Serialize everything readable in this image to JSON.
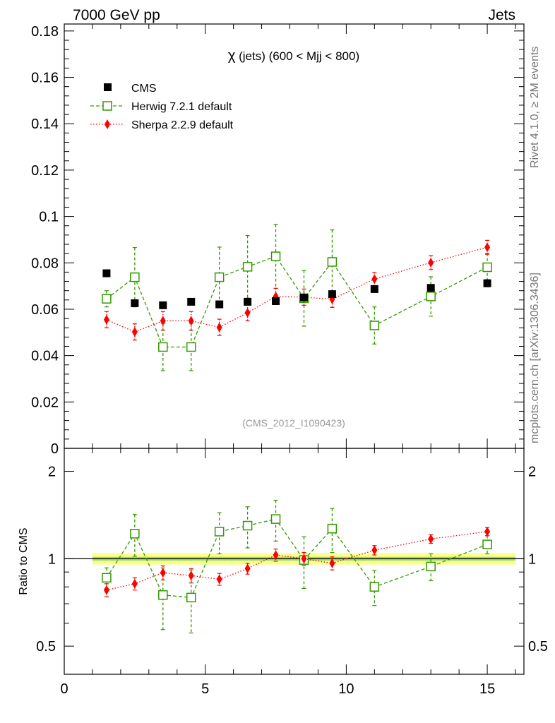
{
  "header": {
    "left": "7000 GeV pp",
    "right": "Jets"
  },
  "side_labels": {
    "rivet": "Rivet 4.1.0, ≥ 2M events",
    "mcplots": "mcplots.cern.ch [arXiv:1306.3436]"
  },
  "plot_title": {
    "symbol": "χ",
    "text": " (jets) (600 < Mjj <  800)"
  },
  "watermark": "(CMS_2012_I1090423)",
  "ratio_ylabel": "Ratio to CMS",
  "chart_data": {
    "type": "scatter",
    "x": [
      1.5,
      2.5,
      3.5,
      4.5,
      5.5,
      6.5,
      7.5,
      8.5,
      9.5,
      11,
      13,
      15
    ],
    "main": {
      "ylim": [
        0,
        0.183
      ],
      "yticks": [
        0,
        0.02,
        0.04,
        0.06,
        0.08,
        0.1,
        0.12,
        0.14,
        0.16,
        0.18
      ],
      "ytick_labels": [
        "0",
        "0.02",
        "0.04",
        "0.06",
        "0.08",
        "0.1",
        "0.12",
        "0.14",
        "0.16",
        "0.18"
      ]
    },
    "ratio": {
      "ylim": [
        0.4,
        2.4
      ],
      "log": true,
      "yticks": [
        0.5,
        1,
        2
      ],
      "ytick_labels": [
        "0.5",
        "1",
        "2"
      ],
      "band_inner": [
        0.985,
        1.015
      ],
      "band_outer": [
        0.955,
        1.045
      ]
    },
    "xlim": [
      0,
      16.3
    ],
    "xticks": [
      0,
      5,
      10,
      15
    ],
    "xtick_labels": [
      "0",
      "5",
      "10",
      "15"
    ],
    "series": [
      {
        "name": "CMS",
        "role": "data",
        "color": "#000000",
        "marker": "square-filled",
        "line": "none",
        "values": [
          0.0755,
          0.0626,
          0.0617,
          0.0632,
          0.0621,
          0.0632,
          0.0635,
          0.065,
          0.0665,
          0.0687,
          0.0692,
          0.0712
        ],
        "errors": [
          0.0015,
          0.0012,
          0.0012,
          0.0012,
          0.0012,
          0.0012,
          0.0012,
          0.0012,
          0.0012,
          0.0014,
          0.0014,
          0.0015
        ],
        "ratio": [
          1,
          1,
          1,
          1,
          1,
          1,
          1,
          1,
          1,
          1,
          1,
          1
        ]
      },
      {
        "name": "Herwig 7.2.1 default",
        "role": "mc",
        "color": "#339900",
        "marker": "square-open",
        "line": "dashed",
        "values": [
          0.0645,
          0.0738,
          0.0437,
          0.0437,
          0.0738,
          0.0783,
          0.0828,
          0.0647,
          0.0804,
          0.053,
          0.0655,
          0.0781
        ],
        "errors": [
          0.0035,
          0.0128,
          0.0102,
          0.0102,
          0.013,
          0.0135,
          0.0138,
          0.012,
          0.0138,
          0.008,
          0.0085,
          0.006
        ],
        "ratio": [
          0.86,
          1.22,
          0.75,
          0.735,
          1.24,
          1.3,
          1.37,
          0.99,
          1.27,
          0.8,
          0.94,
          1.12
        ],
        "ratio_errors": [
          0.07,
          0.2,
          0.18,
          0.18,
          0.2,
          0.21,
          0.22,
          0.2,
          0.22,
          0.11,
          0.1,
          0.08
        ]
      },
      {
        "name": "Sherpa 2.2.9 default",
        "role": "mc",
        "color": "#ff0000",
        "marker": "diamond-filled",
        "line": "dotted",
        "values": [
          0.0555,
          0.0502,
          0.055,
          0.055,
          0.0522,
          0.0585,
          0.0655,
          0.0652,
          0.0643,
          0.073,
          0.0801,
          0.0867
        ],
        "errors": [
          0.0035,
          0.0035,
          0.004,
          0.004,
          0.0035,
          0.0035,
          0.0035,
          0.0035,
          0.0035,
          0.0028,
          0.003,
          0.003
        ],
        "ratio": [
          0.78,
          0.82,
          0.895,
          0.875,
          0.85,
          0.925,
          1.03,
          1.0,
          0.965,
          1.07,
          1.17,
          1.24
        ],
        "ratio_errors": [
          0.04,
          0.04,
          0.05,
          0.05,
          0.04,
          0.04,
          0.05,
          0.05,
          0.05,
          0.04,
          0.04,
          0.04
        ]
      }
    ]
  },
  "colors": {
    "band_inner": "#99dd77",
    "band_outer": "#ffff88",
    "herwig": "#339900",
    "sherpa": "#ff0000",
    "cms": "#000000"
  }
}
